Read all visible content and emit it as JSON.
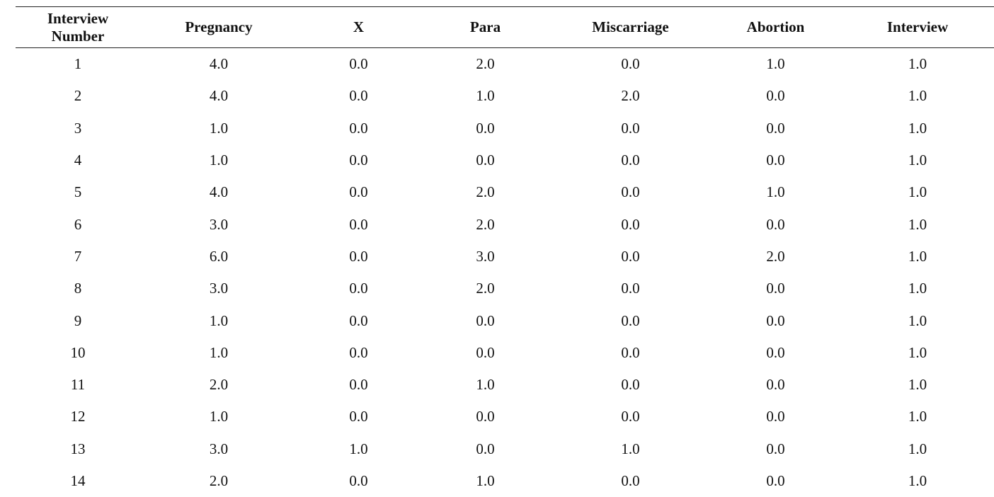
{
  "table": {
    "headers": [
      [
        "Interview",
        "Number"
      ],
      [
        "Pregnancy"
      ],
      [
        "X"
      ],
      [
        "Para"
      ],
      [
        "Miscarriage"
      ],
      [
        "Abortion"
      ],
      [
        "Interview"
      ]
    ],
    "rows": [
      [
        "1",
        "4.0",
        "0.0",
        "2.0",
        "0.0",
        "1.0",
        "1.0"
      ],
      [
        "2",
        "4.0",
        "0.0",
        "1.0",
        "2.0",
        "0.0",
        "1.0"
      ],
      [
        "3",
        "1.0",
        "0.0",
        "0.0",
        "0.0",
        "0.0",
        "1.0"
      ],
      [
        "4",
        "1.0",
        "0.0",
        "0.0",
        "0.0",
        "0.0",
        "1.0"
      ],
      [
        "5",
        "4.0",
        "0.0",
        "2.0",
        "0.0",
        "1.0",
        "1.0"
      ],
      [
        "6",
        "3.0",
        "0.0",
        "2.0",
        "0.0",
        "0.0",
        "1.0"
      ],
      [
        "7",
        "6.0",
        "0.0",
        "3.0",
        "0.0",
        "2.0",
        "1.0"
      ],
      [
        "8",
        "3.0",
        "0.0",
        "2.0",
        "0.0",
        "0.0",
        "1.0"
      ],
      [
        "9",
        "1.0",
        "0.0",
        "0.0",
        "0.0",
        "0.0",
        "1.0"
      ],
      [
        "10",
        "1.0",
        "0.0",
        "0.0",
        "0.0",
        "0.0",
        "1.0"
      ],
      [
        "11",
        "2.0",
        "0.0",
        "1.0",
        "0.0",
        "0.0",
        "1.0"
      ],
      [
        "12",
        "1.0",
        "0.0",
        "0.0",
        "0.0",
        "0.0",
        "1.0"
      ],
      [
        "13",
        "3.0",
        "1.0",
        "0.0",
        "1.0",
        "0.0",
        "1.0"
      ],
      [
        "14",
        "2.0",
        "0.0",
        "1.0",
        "0.0",
        "0.0",
        "1.0"
      ]
    ]
  }
}
